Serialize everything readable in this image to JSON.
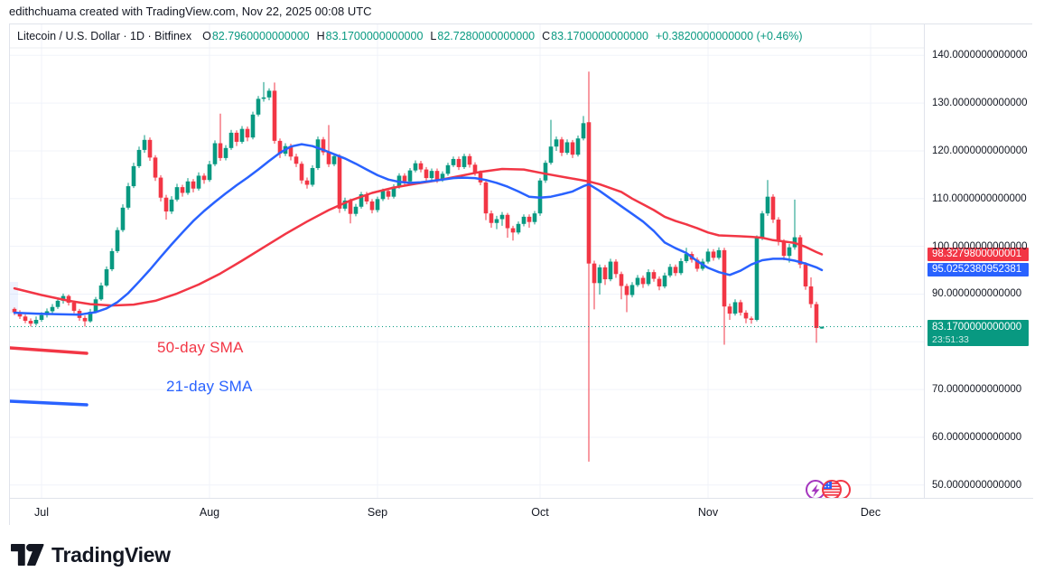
{
  "attribution": "edithchuama created with TradingView.com, Nov 22, 2025 00:08 UTC",
  "header": {
    "symbol_title": "Litecoin / U.S. Dollar · 1D · Bitfinex",
    "ohlc": [
      {
        "label": "O",
        "value": "82.7960000000000"
      },
      {
        "label": "H",
        "value": "83.1700000000000"
      },
      {
        "label": "L",
        "value": "82.7280000000000"
      },
      {
        "label": "C",
        "value": "83.1700000000000"
      }
    ],
    "change": "+0.3820000000000 (+0.46%)"
  },
  "colors": {
    "up": "#089981",
    "down": "#f23645",
    "sma50": "#f23645",
    "sma21": "#2962ff",
    "text": "#131722",
    "grid": "#f0f3fa",
    "border": "#e0e3eb",
    "tag_sma50_bg": "#f23645",
    "tag_sma21_bg": "#2962ff",
    "tag_last_bg": "#089981",
    "band": "rgba(41,98,255,0.08)",
    "event_purple": "#a435be"
  },
  "annotations": {
    "sma50_label": "50-day SMA",
    "sma21_label": "21-day SMA"
  },
  "price_axis": {
    "ticks": [
      {
        "label": "140.0000000000000",
        "value": 140
      },
      {
        "label": "130.0000000000000",
        "value": 130
      },
      {
        "label": "120.0000000000000",
        "value": 120
      },
      {
        "label": "110.0000000000000",
        "value": 110
      },
      {
        "label": "100.0000000000000",
        "value": 100
      },
      {
        "label": "90.0000000000000",
        "value": 90
      },
      {
        "label": "70.0000000000000",
        "value": 70
      },
      {
        "label": "60.0000000000000",
        "value": 60
      },
      {
        "label": "50.0000000000000",
        "value": 50
      }
    ],
    "tags": {
      "sma50": {
        "label": "98.3279800000001",
        "value": 98.32798
      },
      "sma21": {
        "label": "95.0252380952381",
        "value": 95.0252380952381
      },
      "last": {
        "label": "83.1700000000000",
        "value": 83.17,
        "countdown": "23:51:33"
      }
    }
  },
  "time_axis": {
    "months": [
      {
        "label": "Jul",
        "index": 5
      },
      {
        "label": "Aug",
        "index": 36
      },
      {
        "label": "Sep",
        "index": 67
      },
      {
        "label": "Oct",
        "index": 97
      },
      {
        "label": "Nov",
        "index": 128
      },
      {
        "label": "Dec",
        "index": 158
      }
    ]
  },
  "icons": [
    {
      "name": "lightning-event-icon"
    },
    {
      "name": "us-flag-event-icon"
    }
  ],
  "footer": {
    "logo_text": "TradingView"
  },
  "chart_data": {
    "type": "candlestick",
    "title": "Litecoin / U.S. Dollar",
    "interval": "1D",
    "exchange": "Bitfinex",
    "start_date": "2025-06-26",
    "end_date": "2025-11-22",
    "last_price": 83.17,
    "grid_levels": [
      140,
      130,
      120,
      110,
      100,
      90,
      80,
      70,
      60,
      50
    ],
    "ylim": [
      47,
      146
    ],
    "candles": [
      [
        86.9,
        87.2,
        85.6,
        86.2
      ],
      [
        86.2,
        86.6,
        84.8,
        85.3
      ],
      [
        85.3,
        85.7,
        83.9,
        84.4
      ],
      [
        84.4,
        84.9,
        83.2,
        83.8
      ],
      [
        83.8,
        85.3,
        83.4,
        84.6
      ],
      [
        84.6,
        86.2,
        84.2,
        85.6
      ],
      [
        85.6,
        87.0,
        85.1,
        86.4
      ],
      [
        86.4,
        87.9,
        85.9,
        87.3
      ],
      [
        87.3,
        89.2,
        86.9,
        88.6
      ],
      [
        88.6,
        90.1,
        88.0,
        89.6
      ],
      [
        89.6,
        89.9,
        87.6,
        88.2
      ],
      [
        88.2,
        88.6,
        86.0,
        86.5
      ],
      [
        86.5,
        86.9,
        84.4,
        85.0
      ],
      [
        85.0,
        85.5,
        83.2,
        84.3
      ],
      [
        84.3,
        86.9,
        84.0,
        86.3
      ],
      [
        86.3,
        89.4,
        86.0,
        88.9
      ],
      [
        88.9,
        92.4,
        88.6,
        91.8
      ],
      [
        91.8,
        95.8,
        91.5,
        95.2
      ],
      [
        95.2,
        99.6,
        94.8,
        99.0
      ],
      [
        99.0,
        104.0,
        98.6,
        103.4
      ],
      [
        103.4,
        108.8,
        103.0,
        108.1
      ],
      [
        108.1,
        113.3,
        107.7,
        112.6
      ],
      [
        112.6,
        117.5,
        112.2,
        116.8
      ],
      [
        116.8,
        120.9,
        116.4,
        120.2
      ],
      [
        120.2,
        123.3,
        119.6,
        122.3
      ],
      [
        122.3,
        122.8,
        117.9,
        118.6
      ],
      [
        118.6,
        119.1,
        113.7,
        114.4
      ],
      [
        114.4,
        114.9,
        109.4,
        110.2
      ],
      [
        110.2,
        110.8,
        105.6,
        107.3
      ],
      [
        107.3,
        110.5,
        106.8,
        109.8
      ],
      [
        109.8,
        113.1,
        109.4,
        112.4
      ],
      [
        112.4,
        112.9,
        110.4,
        111.2
      ],
      [
        111.2,
        114.3,
        110.8,
        113.6
      ],
      [
        113.6,
        114.1,
        111.3,
        112.1
      ],
      [
        112.1,
        115.5,
        111.7,
        114.8
      ],
      [
        114.8,
        115.3,
        113.1,
        113.9
      ],
      [
        113.9,
        117.9,
        113.5,
        117.2
      ],
      [
        117.2,
        122.2,
        116.8,
        121.6
      ],
      [
        121.6,
        127.8,
        117.9,
        118.5
      ],
      [
        118.5,
        121.2,
        118.0,
        120.6
      ],
      [
        120.6,
        124.4,
        120.2,
        123.8
      ],
      [
        123.8,
        124.3,
        121.0,
        121.9
      ],
      [
        121.9,
        125.2,
        121.5,
        124.6
      ],
      [
        124.6,
        125.1,
        122.0,
        122.8
      ],
      [
        122.8,
        128.2,
        122.4,
        127.6
      ],
      [
        127.6,
        131.5,
        127.2,
        130.9
      ],
      [
        130.9,
        134.4,
        130.3,
        131.2
      ],
      [
        131.2,
        133.1,
        130.6,
        132.6
      ],
      [
        132.6,
        134.3,
        121.5,
        122.1
      ],
      [
        122.1,
        122.6,
        118.5,
        119.4
      ],
      [
        119.4,
        121.6,
        118.9,
        121.0
      ],
      [
        121.0,
        121.5,
        118.0,
        118.8
      ],
      [
        118.8,
        119.4,
        116.6,
        117.3
      ],
      [
        117.3,
        117.8,
        113.1,
        113.8
      ],
      [
        113.8,
        114.4,
        112.1,
        112.9
      ],
      [
        112.9,
        117.0,
        112.5,
        116.4
      ],
      [
        116.4,
        123.0,
        116.0,
        122.4
      ],
      [
        122.4,
        122.9,
        119.1,
        119.7
      ],
      [
        119.7,
        125.4,
        116.6,
        117.2
      ],
      [
        117.2,
        119.5,
        116.8,
        118.9
      ],
      [
        118.9,
        119.3,
        107.0,
        107.9
      ],
      [
        107.9,
        110.2,
        107.4,
        109.6
      ],
      [
        109.6,
        110.0,
        104.8,
        106.8
      ],
      [
        106.8,
        108.9,
        106.3,
        108.3
      ],
      [
        108.3,
        111.4,
        107.9,
        110.9
      ],
      [
        110.9,
        111.4,
        108.8,
        109.4
      ],
      [
        109.4,
        109.9,
        106.9,
        107.6
      ],
      [
        107.6,
        110.4,
        107.1,
        109.9
      ],
      [
        109.9,
        112.1,
        109.5,
        111.6
      ],
      [
        111.6,
        112.1,
        109.8,
        110.4
      ],
      [
        110.4,
        113.0,
        110.0,
        112.5
      ],
      [
        112.5,
        115.3,
        112.1,
        114.8
      ],
      [
        114.8,
        115.3,
        112.9,
        113.6
      ],
      [
        113.6,
        116.4,
        113.2,
        115.9
      ],
      [
        115.9,
        118.0,
        115.5,
        117.4
      ],
      [
        117.4,
        117.9,
        115.5,
        116.1
      ],
      [
        116.1,
        116.6,
        113.7,
        114.3
      ],
      [
        114.3,
        116.3,
        113.9,
        115.8
      ],
      [
        115.8,
        116.3,
        113.3,
        113.9
      ],
      [
        113.9,
        115.7,
        113.5,
        115.2
      ],
      [
        115.2,
        117.5,
        114.8,
        117.0
      ],
      [
        117.0,
        118.8,
        116.6,
        118.3
      ],
      [
        118.3,
        118.8,
        116.0,
        116.6
      ],
      [
        116.6,
        119.4,
        116.2,
        118.9
      ],
      [
        118.9,
        119.4,
        116.5,
        117.1
      ],
      [
        117.1,
        117.6,
        114.8,
        115.4
      ],
      [
        115.4,
        115.9,
        112.8,
        113.4
      ],
      [
        113.4,
        113.9,
        105.5,
        106.9
      ],
      [
        106.9,
        107.5,
        103.9,
        104.9
      ],
      [
        104.9,
        106.4,
        103.6,
        105.7
      ],
      [
        105.7,
        107.2,
        104.3,
        106.6
      ],
      [
        106.6,
        107.0,
        101.8,
        103.8
      ],
      [
        103.8,
        104.3,
        101.2,
        102.9
      ],
      [
        102.9,
        105.2,
        102.5,
        104.7
      ],
      [
        104.7,
        106.7,
        104.2,
        106.2
      ],
      [
        106.2,
        106.7,
        103.9,
        105.1
      ],
      [
        105.1,
        107.4,
        104.6,
        106.9
      ],
      [
        106.9,
        114.3,
        106.4,
        113.8
      ],
      [
        113.8,
        118.0,
        113.3,
        117.5
      ],
      [
        117.5,
        126.5,
        117.1,
        120.9
      ],
      [
        120.9,
        123.0,
        120.0,
        122.4
      ],
      [
        122.4,
        122.9,
        118.9,
        119.6
      ],
      [
        119.6,
        122.4,
        119.2,
        121.8
      ],
      [
        121.8,
        122.3,
        118.5,
        119.2
      ],
      [
        119.2,
        123.2,
        118.8,
        122.6
      ],
      [
        122.6,
        127.3,
        122.2,
        125.8
      ],
      [
        126.0,
        136.6,
        54.9,
        96.4
      ],
      [
        96.4,
        97.0,
        86.8,
        92.3
      ],
      [
        92.3,
        96.2,
        89.9,
        95.6
      ],
      [
        95.6,
        96.1,
        91.9,
        93.1
      ],
      [
        93.1,
        97.4,
        92.7,
        96.8
      ],
      [
        96.8,
        97.3,
        93.4,
        94.2
      ],
      [
        94.2,
        94.7,
        88.9,
        91.7
      ],
      [
        91.7,
        92.2,
        86.2,
        89.8
      ],
      [
        89.8,
        92.5,
        89.3,
        91.9
      ],
      [
        91.9,
        94.0,
        91.5,
        93.4
      ],
      [
        93.4,
        93.9,
        91.3,
        92.1
      ],
      [
        92.1,
        95.2,
        91.7,
        94.6
      ],
      [
        94.6,
        95.1,
        92.6,
        93.2
      ],
      [
        93.2,
        93.7,
        90.8,
        91.6
      ],
      [
        91.6,
        94.5,
        91.2,
        93.9
      ],
      [
        93.9,
        96.3,
        93.5,
        95.7
      ],
      [
        95.7,
        96.2,
        93.8,
        94.4
      ],
      [
        94.4,
        97.5,
        94.0,
        96.9
      ],
      [
        96.9,
        99.7,
        96.5,
        98.4
      ],
      [
        98.4,
        98.9,
        96.6,
        97.2
      ],
      [
        97.2,
        97.7,
        94.7,
        95.3
      ],
      [
        95.3,
        97.4,
        94.9,
        96.8
      ],
      [
        96.8,
        99.5,
        96.4,
        98.9
      ],
      [
        98.9,
        99.4,
        97.0,
        97.6
      ],
      [
        97.6,
        99.8,
        97.2,
        99.2
      ],
      [
        99.2,
        99.7,
        79.4,
        87.4
      ],
      [
        87.4,
        88.0,
        84.6,
        85.9
      ],
      [
        85.9,
        88.9,
        85.5,
        88.3
      ],
      [
        88.3,
        88.8,
        85.5,
        86.1
      ],
      [
        86.1,
        86.6,
        83.9,
        84.9
      ],
      [
        84.9,
        85.3,
        83.8,
        84.6
      ],
      [
        84.6,
        102.3,
        84.3,
        101.8
      ],
      [
        101.8,
        107.4,
        101.3,
        106.9
      ],
      [
        106.9,
        113.9,
        106.4,
        110.4
      ],
      [
        110.4,
        110.9,
        104.9,
        105.6
      ],
      [
        105.6,
        106.1,
        100.2,
        101.0
      ],
      [
        101.0,
        101.5,
        97.1,
        98.0
      ],
      [
        98.0,
        100.5,
        96.6,
        99.8
      ],
      [
        99.8,
        109.8,
        99.3,
        101.9
      ],
      [
        101.9,
        102.4,
        95.4,
        96.2
      ],
      [
        96.2,
        96.7,
        90.9,
        91.6
      ],
      [
        91.6,
        93.5,
        87.1,
        87.9
      ],
      [
        87.9,
        88.4,
        79.8,
        82.9
      ],
      [
        82.796,
        83.17,
        82.728,
        83.17
      ]
    ],
    "sma50": [
      [
        0,
        91.2
      ],
      [
        5,
        89.8
      ],
      [
        10,
        88.6
      ],
      [
        14,
        87.9
      ],
      [
        18,
        87.6
      ],
      [
        22,
        87.8
      ],
      [
        26,
        88.6
      ],
      [
        30,
        90.1
      ],
      [
        34,
        92.0
      ],
      [
        38,
        94.3
      ],
      [
        42,
        97.0
      ],
      [
        46,
        99.8
      ],
      [
        50,
        102.6
      ],
      [
        54,
        105.2
      ],
      [
        58,
        107.6
      ],
      [
        62,
        109.6
      ],
      [
        66,
        111.2
      ],
      [
        70,
        112.3
      ],
      [
        74,
        113.1
      ],
      [
        78,
        113.8
      ],
      [
        82,
        114.7
      ],
      [
        86,
        115.6
      ],
      [
        90,
        116.2
      ],
      [
        94,
        116.1
      ],
      [
        98,
        115.2
      ],
      [
        102,
        114.4
      ],
      [
        106,
        113.6
      ],
      [
        108,
        113.0
      ],
      [
        110,
        112.2
      ],
      [
        112,
        111.4
      ],
      [
        114,
        110.0
      ],
      [
        116,
        108.8
      ],
      [
        118,
        107.6
      ],
      [
        120,
        106.2
      ],
      [
        122,
        105.3
      ],
      [
        124,
        104.6
      ],
      [
        126,
        103.8
      ],
      [
        128,
        102.9
      ],
      [
        130,
        102.3
      ],
      [
        132,
        102.2
      ],
      [
        134,
        102.1
      ],
      [
        136,
        102.0
      ],
      [
        138,
        101.8
      ],
      [
        140,
        101.3
      ],
      [
        142,
        101.0
      ],
      [
        144,
        100.7
      ],
      [
        146,
        99.9
      ],
      [
        148,
        98.8
      ],
      [
        149,
        98.33
      ]
    ],
    "sma21": [
      [
        0,
        86.1
      ],
      [
        4,
        85.9
      ],
      [
        8,
        85.8
      ],
      [
        12,
        85.7
      ],
      [
        15,
        86.2
      ],
      [
        17,
        87.0
      ],
      [
        19,
        88.3
      ],
      [
        21,
        90.2
      ],
      [
        23,
        92.6
      ],
      [
        25,
        95.1
      ],
      [
        27,
        97.8
      ],
      [
        29,
        100.4
      ],
      [
        31,
        102.9
      ],
      [
        33,
        105.3
      ],
      [
        35,
        107.4
      ],
      [
        37,
        109.3
      ],
      [
        39,
        111.1
      ],
      [
        41,
        112.8
      ],
      [
        43,
        114.4
      ],
      [
        45,
        116.1
      ],
      [
        47,
        117.9
      ],
      [
        49,
        119.6
      ],
      [
        51,
        120.9
      ],
      [
        53,
        121.4
      ],
      [
        55,
        121.0
      ],
      [
        57,
        120.2
      ],
      [
        59,
        119.3
      ],
      [
        61,
        118.4
      ],
      [
        63,
        117.3
      ],
      [
        65,
        116.1
      ],
      [
        67,
        114.9
      ],
      [
        69,
        114.0
      ],
      [
        71,
        113.5
      ],
      [
        73,
        113.3
      ],
      [
        75,
        113.4
      ],
      [
        77,
        113.7
      ],
      [
        79,
        114.0
      ],
      [
        81,
        114.3
      ],
      [
        83,
        114.4
      ],
      [
        85,
        114.3
      ],
      [
        87,
        113.9
      ],
      [
        89,
        113.3
      ],
      [
        91,
        112.5
      ],
      [
        93,
        111.5
      ],
      [
        95,
        110.4
      ],
      [
        97,
        110.2
      ],
      [
        99,
        110.4
      ],
      [
        101,
        110.9
      ],
      [
        103,
        111.5
      ],
      [
        105,
        112.6
      ],
      [
        106,
        113.0
      ],
      [
        108,
        111.6
      ],
      [
        110,
        110.0
      ],
      [
        112,
        108.4
      ],
      [
        114,
        106.8
      ],
      [
        116,
        105.2
      ],
      [
        118,
        103.2
      ],
      [
        120,
        100.8
      ],
      [
        122,
        99.6
      ],
      [
        124,
        98.6
      ],
      [
        126,
        96.9
      ],
      [
        128,
        95.5
      ],
      [
        130,
        94.6
      ],
      [
        132,
        94.0
      ],
      [
        134,
        94.9
      ],
      [
        136,
        96.2
      ],
      [
        138,
        97.1
      ],
      [
        140,
        97.4
      ],
      [
        142,
        97.4
      ],
      [
        144,
        97.0
      ],
      [
        146,
        96.4
      ],
      [
        148,
        95.6
      ],
      [
        149,
        95.03
      ]
    ]
  }
}
